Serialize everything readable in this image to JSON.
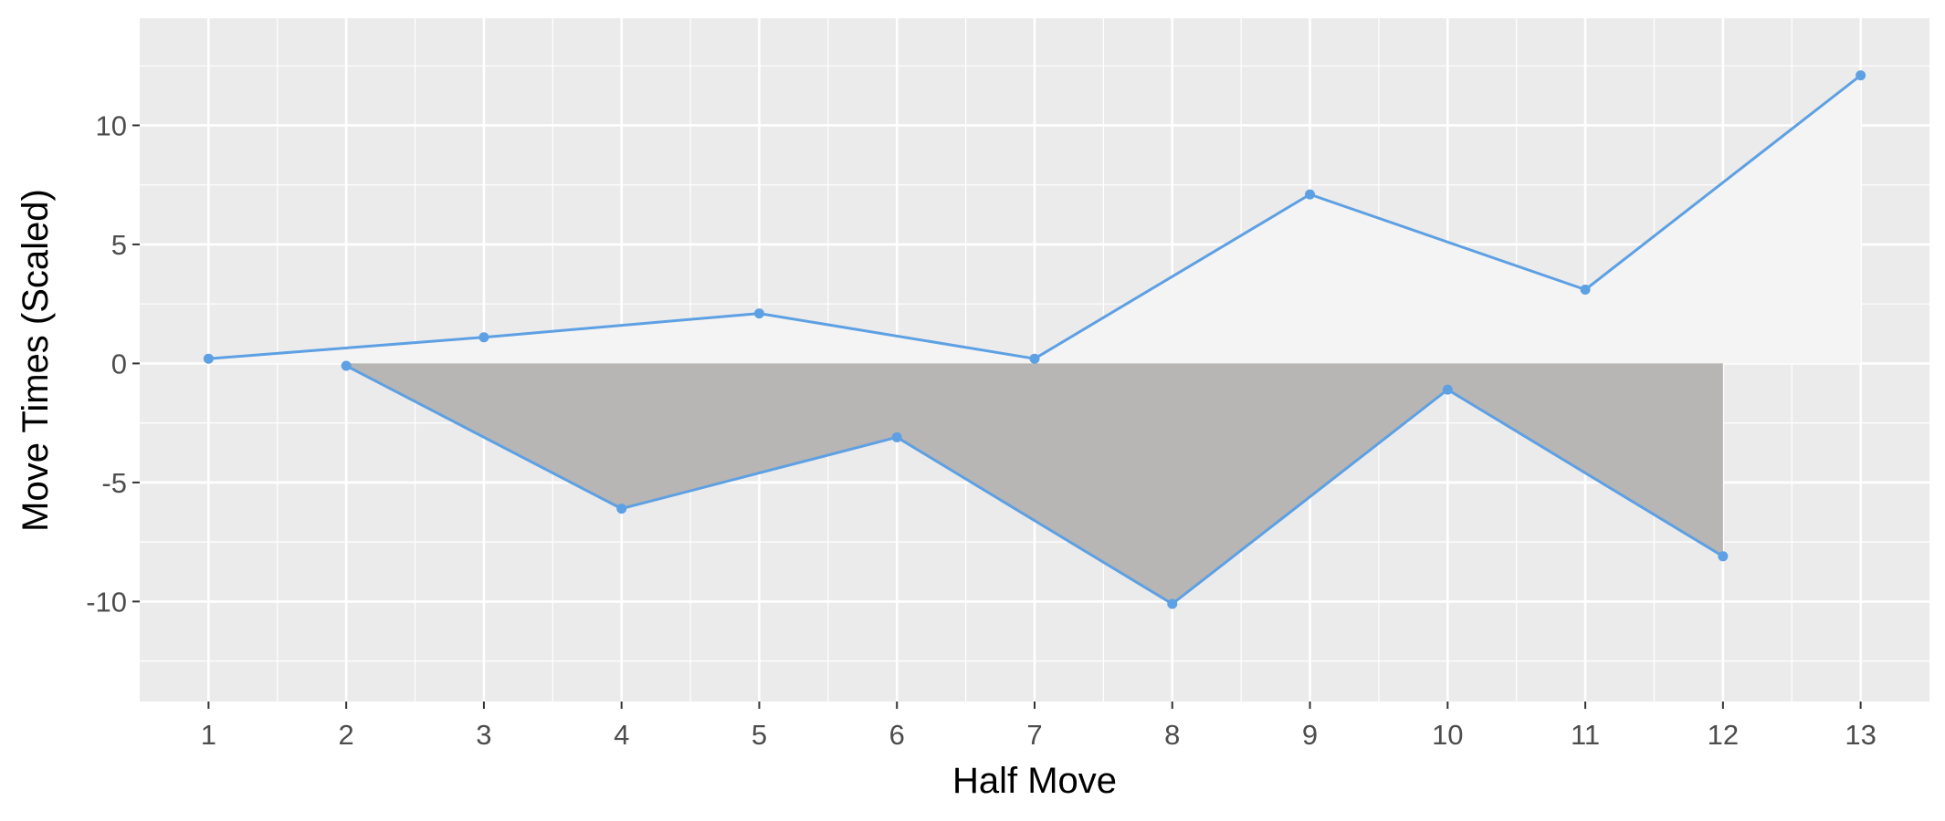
{
  "chart_data": {
    "type": "line",
    "title": "",
    "xlabel": "Half Move",
    "ylabel": "Move Times (Scaled)",
    "x": [
      1,
      2,
      3,
      4,
      5,
      6,
      7,
      8,
      9,
      10,
      11,
      12,
      13
    ],
    "x_tick_labels": [
      "1",
      "2",
      "3",
      "4",
      "5",
      "6",
      "7",
      "8",
      "9",
      "10",
      "11",
      "12",
      "13"
    ],
    "y_ticks": [
      10,
      5,
      0,
      -5,
      -10
    ],
    "y_tick_labels": [
      "10",
      "5",
      "0",
      "-5",
      "-10"
    ],
    "xlim": [
      0.5,
      13.5
    ],
    "ylim": [
      -14.2,
      14.5
    ],
    "grid": true,
    "series": [
      {
        "color": "#5da0e3",
        "points": [
          {
            "x": 1,
            "y": 0.2
          },
          {
            "x": 3,
            "y": 1.1
          },
          {
            "x": 5,
            "y": 2.1
          },
          {
            "x": 7,
            "y": 0.2
          },
          {
            "x": 9,
            "y": 7.1
          },
          {
            "x": 11,
            "y": 3.1
          },
          {
            "x": 13,
            "y": 12.1
          }
        ],
        "fill": "#f4f4f4"
      },
      {
        "color": "#5da0e3",
        "points": [
          {
            "x": 2,
            "y": -0.1
          },
          {
            "x": 4,
            "y": -6.1
          },
          {
            "x": 6,
            "y": -3.1
          },
          {
            "x": 8,
            "y": -10.1
          },
          {
            "x": 10,
            "y": -1.1
          },
          {
            "x": 12,
            "y": -8.1
          }
        ],
        "fill": "#b7b6b5"
      }
    ],
    "panel_background": "#ebebeb",
    "grid_color": "#ffffff"
  }
}
